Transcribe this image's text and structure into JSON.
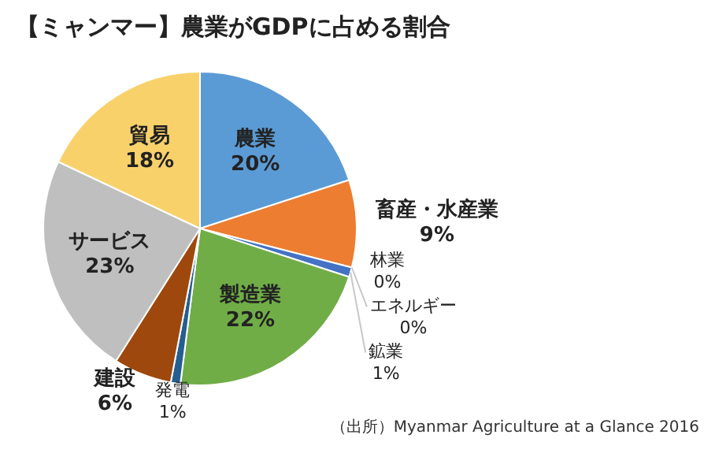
{
  "chart_data": {
    "type": "pie",
    "title": "【ミャンマー】農業がGDPに占める割合",
    "categories": [
      "農業",
      "畜産・水産業",
      "林業",
      "エネルギー",
      "鉱業",
      "製造業",
      "発電",
      "建設",
      "サービス",
      "貿易"
    ],
    "values": [
      20,
      9,
      0,
      0,
      1,
      22,
      1,
      6,
      23,
      18
    ],
    "value_labels": [
      "20%",
      "9%",
      "0%",
      "0%",
      "1%",
      "22%",
      "1%",
      "6%",
      "23%",
      "18%"
    ],
    "colors": [
      "#5b9bd5",
      "#ed7d31",
      "#a5a5a5",
      "#ffc000",
      "#4472c4",
      "#70ad47",
      "#255e91",
      "#9e480e",
      "#bfbfbf",
      "#f9d16b"
    ],
    "legend": false,
    "annotations": [
      "（出所）Myanmar Agriculture at a Glance 2016"
    ]
  }
}
